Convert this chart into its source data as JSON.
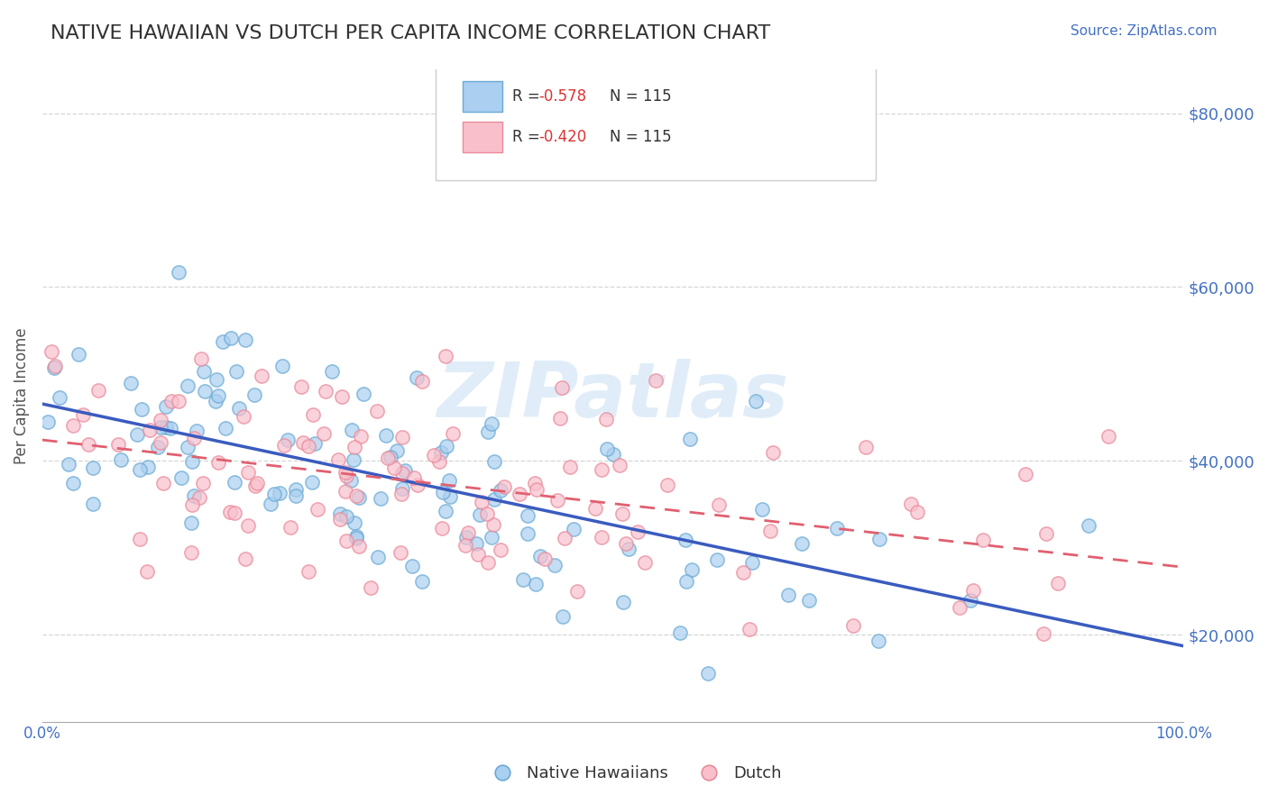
{
  "title": "NATIVE HAWAIIAN VS DUTCH PER CAPITA INCOME CORRELATION CHART",
  "source_text": "Source: ZipAtlas.com",
  "xlabel": "",
  "ylabel": "Per Capita Income",
  "x_min": 0.0,
  "x_max": 1.0,
  "y_min": 10000,
  "y_max": 85000,
  "yticks": [
    20000,
    40000,
    60000,
    80000
  ],
  "ytick_labels": [
    "$20,000",
    "$40,000",
    "$60,000",
    "$80,000"
  ],
  "xticks": [
    0.0,
    1.0
  ],
  "xtick_labels": [
    "0.0%",
    "100.0%"
  ],
  "blue_R": -0.578,
  "pink_R": -0.42,
  "N": 115,
  "blue_face_color": "#aacff0",
  "blue_edge_color": "#6aaad4",
  "pink_face_color": "#f9c0cc",
  "pink_edge_color": "#e88a9a",
  "blue_line_color": "#3a5bbf",
  "pink_line_color": "#e06070",
  "legend_R_color": "#e05050",
  "legend_N_color": "#333333",
  "native_hawaiians_label": "Native Hawaiians",
  "dutch_label": "Dutch",
  "watermark": "ZIPatlas",
  "watermark_color": "#c8dff5",
  "title_color": "#333333",
  "title_fontsize": 16,
  "axis_label_color": "#555555",
  "tick_color": "#4472c4",
  "source_color": "#4472c4",
  "grid_color": "#cccccc",
  "background_color": "#ffffff",
  "seed_blue": 10,
  "seed_pink": 20,
  "blue_intercept": 47000,
  "blue_slope": -27000,
  "blue_noise": 7500,
  "pink_intercept": 43000,
  "pink_slope": -15000,
  "pink_noise": 7500
}
